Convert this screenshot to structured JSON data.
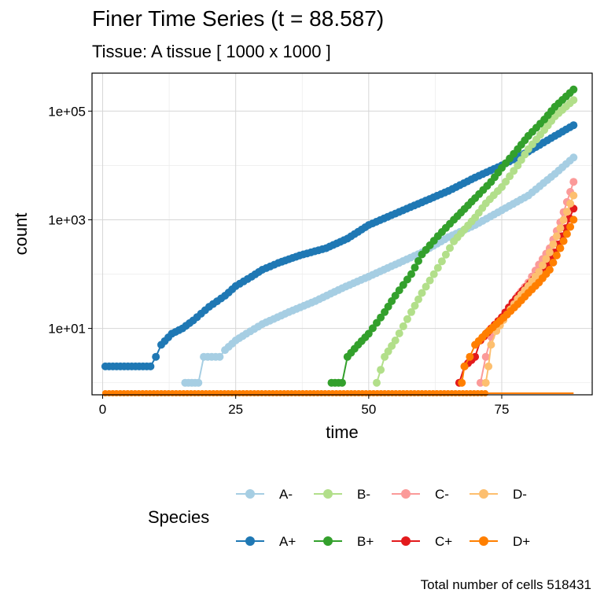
{
  "chart_data": {
    "type": "line",
    "title": "Finer Time Series (t = 88.587)",
    "subtitle": "Tissue: A tissue [ 1000 x 1000 ]",
    "xlabel": "time",
    "ylabel": "count",
    "x_ticks": [
      0,
      25,
      50,
      75
    ],
    "y_ticks": [
      10,
      1000,
      100000
    ],
    "y_tick_labels": [
      "1e+01",
      "1e+03",
      "1e+05"
    ],
    "y_scale": "log10",
    "xlim": [
      -2,
      92
    ],
    "ylim": [
      0.6,
      500000
    ],
    "grid": true,
    "legend": {
      "title": "Species",
      "position": "bottom"
    },
    "caption": "Total number of cells 518431",
    "series": [
      {
        "name": "A-",
        "color": "#a6cee3",
        "points": [
          [
            15.5,
            1
          ],
          [
            18,
            1
          ],
          [
            19,
            3
          ],
          [
            22,
            3
          ],
          [
            23,
            4
          ],
          [
            25,
            6
          ],
          [
            27,
            8
          ],
          [
            30,
            12
          ],
          [
            35,
            20
          ],
          [
            40,
            32
          ],
          [
            45,
            55
          ],
          [
            50,
            90
          ],
          [
            55,
            150
          ],
          [
            60,
            250
          ],
          [
            65,
            480
          ],
          [
            70,
            800
          ],
          [
            75,
            1500
          ],
          [
            80,
            2800
          ],
          [
            85,
            7000
          ],
          [
            88.5,
            14000
          ]
        ]
      },
      {
        "name": "A+",
        "color": "#1f78b4",
        "points": [
          [
            0.5,
            2
          ],
          [
            9,
            2
          ],
          [
            10,
            3
          ],
          [
            11,
            5
          ],
          [
            13,
            8
          ],
          [
            15,
            10
          ],
          [
            17,
            14
          ],
          [
            20,
            25
          ],
          [
            23,
            40
          ],
          [
            25,
            60
          ],
          [
            28,
            90
          ],
          [
            30,
            120
          ],
          [
            33,
            160
          ],
          [
            37,
            220
          ],
          [
            42,
            300
          ],
          [
            46,
            450
          ],
          [
            50,
            800
          ],
          [
            55,
            1300
          ],
          [
            60,
            2100
          ],
          [
            65,
            3400
          ],
          [
            70,
            6000
          ],
          [
            75,
            10000
          ],
          [
            80,
            18000
          ],
          [
            85,
            35000
          ],
          [
            88.5,
            55000
          ]
        ]
      },
      {
        "name": "B-",
        "color": "#b2df8a",
        "points": [
          [
            51.5,
            1
          ],
          [
            53,
            3
          ],
          [
            55,
            6
          ],
          [
            58,
            20
          ],
          [
            60,
            45
          ],
          [
            63,
            130
          ],
          [
            66,
            400
          ],
          [
            70,
            1100
          ],
          [
            72,
            2000
          ],
          [
            75,
            4000
          ],
          [
            78,
            10000
          ],
          [
            80,
            20000
          ],
          [
            83,
            45000
          ],
          [
            85,
            80000
          ],
          [
            88.5,
            160000
          ]
        ]
      },
      {
        "name": "B+",
        "color": "#33a02c",
        "points": [
          [
            43,
            1
          ],
          [
            45,
            1
          ],
          [
            46,
            3
          ],
          [
            48,
            5
          ],
          [
            50,
            8
          ],
          [
            53,
            20
          ],
          [
            55,
            40
          ],
          [
            58,
            100
          ],
          [
            60,
            230
          ],
          [
            63,
            500
          ],
          [
            66,
            1000
          ],
          [
            70,
            2500
          ],
          [
            73,
            5000
          ],
          [
            75,
            9000
          ],
          [
            78,
            20000
          ],
          [
            80,
            35000
          ],
          [
            83,
            70000
          ],
          [
            85,
            120000
          ],
          [
            88.5,
            250000
          ]
        ]
      },
      {
        "name": "C-",
        "color": "#fb9a99",
        "points": [
          [
            71,
            1
          ],
          [
            72,
            3
          ],
          [
            73,
            7
          ],
          [
            74,
            12
          ],
          [
            76,
            20
          ],
          [
            78,
            40
          ],
          [
            80,
            70
          ],
          [
            82,
            150
          ],
          [
            84,
            300
          ],
          [
            86,
            900
          ],
          [
            88.5,
            5000
          ]
        ]
      },
      {
        "name": "C+",
        "color": "#e31a1c",
        "points": [
          [
            67,
            1
          ],
          [
            68,
            2
          ],
          [
            70,
            3
          ],
          [
            71,
            6
          ],
          [
            73,
            10
          ],
          [
            75,
            16
          ],
          [
            77,
            30
          ],
          [
            79,
            50
          ],
          [
            81,
            80
          ],
          [
            83,
            130
          ],
          [
            85,
            250
          ],
          [
            87,
            700
          ],
          [
            88.5,
            1600
          ]
        ]
      },
      {
        "name": "D-",
        "color": "#fdbf6f",
        "points": [
          [
            72,
            1
          ],
          [
            72.5,
            2
          ],
          [
            73,
            5
          ],
          [
            74,
            9
          ],
          [
            76,
            18
          ],
          [
            78,
            35
          ],
          [
            80,
            60
          ],
          [
            82,
            110
          ],
          [
            84,
            250
          ],
          [
            86,
            700
          ],
          [
            88.5,
            2800
          ]
        ]
      },
      {
        "name": "D+",
        "color": "#ff7f00",
        "points": [
          [
            67.5,
            1
          ],
          [
            68,
            2
          ],
          [
            69,
            3
          ],
          [
            70,
            5
          ],
          [
            72,
            8
          ],
          [
            74,
            12
          ],
          [
            76,
            18
          ],
          [
            78,
            28
          ],
          [
            80,
            45
          ],
          [
            82,
            70
          ],
          [
            84,
            120
          ],
          [
            86,
            300
          ],
          [
            88.5,
            1000
          ]
        ]
      }
    ]
  },
  "legend_rows": [
    [
      "A-",
      "B-",
      "C-",
      "D-"
    ],
    [
      "A+",
      "B+",
      "C+",
      "D+"
    ]
  ]
}
